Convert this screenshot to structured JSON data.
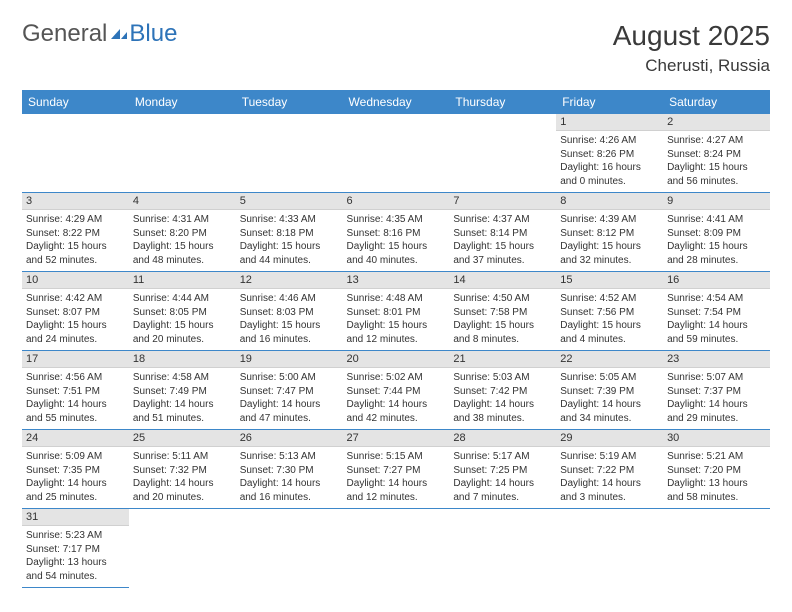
{
  "logo": {
    "text1": "General",
    "text2": "Blue"
  },
  "title": "August 2025",
  "location": "Cherusti, Russia",
  "colors": {
    "header_bg": "#3d87c9",
    "header_text": "#ffffff",
    "daynum_bg": "#e4e4e4",
    "row_border": "#3d87c9",
    "text": "#333333",
    "logo_blue": "#2d73b8"
  },
  "day_headers": [
    "Sunday",
    "Monday",
    "Tuesday",
    "Wednesday",
    "Thursday",
    "Friday",
    "Saturday"
  ],
  "weeks": [
    [
      null,
      null,
      null,
      null,
      null,
      {
        "n": "1",
        "sr": "Sunrise: 4:26 AM",
        "ss": "Sunset: 8:26 PM",
        "dl1": "Daylight: 16 hours",
        "dl2": "and 0 minutes."
      },
      {
        "n": "2",
        "sr": "Sunrise: 4:27 AM",
        "ss": "Sunset: 8:24 PM",
        "dl1": "Daylight: 15 hours",
        "dl2": "and 56 minutes."
      }
    ],
    [
      {
        "n": "3",
        "sr": "Sunrise: 4:29 AM",
        "ss": "Sunset: 8:22 PM",
        "dl1": "Daylight: 15 hours",
        "dl2": "and 52 minutes."
      },
      {
        "n": "4",
        "sr": "Sunrise: 4:31 AM",
        "ss": "Sunset: 8:20 PM",
        "dl1": "Daylight: 15 hours",
        "dl2": "and 48 minutes."
      },
      {
        "n": "5",
        "sr": "Sunrise: 4:33 AM",
        "ss": "Sunset: 8:18 PM",
        "dl1": "Daylight: 15 hours",
        "dl2": "and 44 minutes."
      },
      {
        "n": "6",
        "sr": "Sunrise: 4:35 AM",
        "ss": "Sunset: 8:16 PM",
        "dl1": "Daylight: 15 hours",
        "dl2": "and 40 minutes."
      },
      {
        "n": "7",
        "sr": "Sunrise: 4:37 AM",
        "ss": "Sunset: 8:14 PM",
        "dl1": "Daylight: 15 hours",
        "dl2": "and 37 minutes."
      },
      {
        "n": "8",
        "sr": "Sunrise: 4:39 AM",
        "ss": "Sunset: 8:12 PM",
        "dl1": "Daylight: 15 hours",
        "dl2": "and 32 minutes."
      },
      {
        "n": "9",
        "sr": "Sunrise: 4:41 AM",
        "ss": "Sunset: 8:09 PM",
        "dl1": "Daylight: 15 hours",
        "dl2": "and 28 minutes."
      }
    ],
    [
      {
        "n": "10",
        "sr": "Sunrise: 4:42 AM",
        "ss": "Sunset: 8:07 PM",
        "dl1": "Daylight: 15 hours",
        "dl2": "and 24 minutes."
      },
      {
        "n": "11",
        "sr": "Sunrise: 4:44 AM",
        "ss": "Sunset: 8:05 PM",
        "dl1": "Daylight: 15 hours",
        "dl2": "and 20 minutes."
      },
      {
        "n": "12",
        "sr": "Sunrise: 4:46 AM",
        "ss": "Sunset: 8:03 PM",
        "dl1": "Daylight: 15 hours",
        "dl2": "and 16 minutes."
      },
      {
        "n": "13",
        "sr": "Sunrise: 4:48 AM",
        "ss": "Sunset: 8:01 PM",
        "dl1": "Daylight: 15 hours",
        "dl2": "and 12 minutes."
      },
      {
        "n": "14",
        "sr": "Sunrise: 4:50 AM",
        "ss": "Sunset: 7:58 PM",
        "dl1": "Daylight: 15 hours",
        "dl2": "and 8 minutes."
      },
      {
        "n": "15",
        "sr": "Sunrise: 4:52 AM",
        "ss": "Sunset: 7:56 PM",
        "dl1": "Daylight: 15 hours",
        "dl2": "and 4 minutes."
      },
      {
        "n": "16",
        "sr": "Sunrise: 4:54 AM",
        "ss": "Sunset: 7:54 PM",
        "dl1": "Daylight: 14 hours",
        "dl2": "and 59 minutes."
      }
    ],
    [
      {
        "n": "17",
        "sr": "Sunrise: 4:56 AM",
        "ss": "Sunset: 7:51 PM",
        "dl1": "Daylight: 14 hours",
        "dl2": "and 55 minutes."
      },
      {
        "n": "18",
        "sr": "Sunrise: 4:58 AM",
        "ss": "Sunset: 7:49 PM",
        "dl1": "Daylight: 14 hours",
        "dl2": "and 51 minutes."
      },
      {
        "n": "19",
        "sr": "Sunrise: 5:00 AM",
        "ss": "Sunset: 7:47 PM",
        "dl1": "Daylight: 14 hours",
        "dl2": "and 47 minutes."
      },
      {
        "n": "20",
        "sr": "Sunrise: 5:02 AM",
        "ss": "Sunset: 7:44 PM",
        "dl1": "Daylight: 14 hours",
        "dl2": "and 42 minutes."
      },
      {
        "n": "21",
        "sr": "Sunrise: 5:03 AM",
        "ss": "Sunset: 7:42 PM",
        "dl1": "Daylight: 14 hours",
        "dl2": "and 38 minutes."
      },
      {
        "n": "22",
        "sr": "Sunrise: 5:05 AM",
        "ss": "Sunset: 7:39 PM",
        "dl1": "Daylight: 14 hours",
        "dl2": "and 34 minutes."
      },
      {
        "n": "23",
        "sr": "Sunrise: 5:07 AM",
        "ss": "Sunset: 7:37 PM",
        "dl1": "Daylight: 14 hours",
        "dl2": "and 29 minutes."
      }
    ],
    [
      {
        "n": "24",
        "sr": "Sunrise: 5:09 AM",
        "ss": "Sunset: 7:35 PM",
        "dl1": "Daylight: 14 hours",
        "dl2": "and 25 minutes."
      },
      {
        "n": "25",
        "sr": "Sunrise: 5:11 AM",
        "ss": "Sunset: 7:32 PM",
        "dl1": "Daylight: 14 hours",
        "dl2": "and 20 minutes."
      },
      {
        "n": "26",
        "sr": "Sunrise: 5:13 AM",
        "ss": "Sunset: 7:30 PM",
        "dl1": "Daylight: 14 hours",
        "dl2": "and 16 minutes."
      },
      {
        "n": "27",
        "sr": "Sunrise: 5:15 AM",
        "ss": "Sunset: 7:27 PM",
        "dl1": "Daylight: 14 hours",
        "dl2": "and 12 minutes."
      },
      {
        "n": "28",
        "sr": "Sunrise: 5:17 AM",
        "ss": "Sunset: 7:25 PM",
        "dl1": "Daylight: 14 hours",
        "dl2": "and 7 minutes."
      },
      {
        "n": "29",
        "sr": "Sunrise: 5:19 AM",
        "ss": "Sunset: 7:22 PM",
        "dl1": "Daylight: 14 hours",
        "dl2": "and 3 minutes."
      },
      {
        "n": "30",
        "sr": "Sunrise: 5:21 AM",
        "ss": "Sunset: 7:20 PM",
        "dl1": "Daylight: 13 hours",
        "dl2": "and 58 minutes."
      }
    ],
    [
      {
        "n": "31",
        "sr": "Sunrise: 5:23 AM",
        "ss": "Sunset: 7:17 PM",
        "dl1": "Daylight: 13 hours",
        "dl2": "and 54 minutes."
      },
      null,
      null,
      null,
      null,
      null,
      null
    ]
  ]
}
